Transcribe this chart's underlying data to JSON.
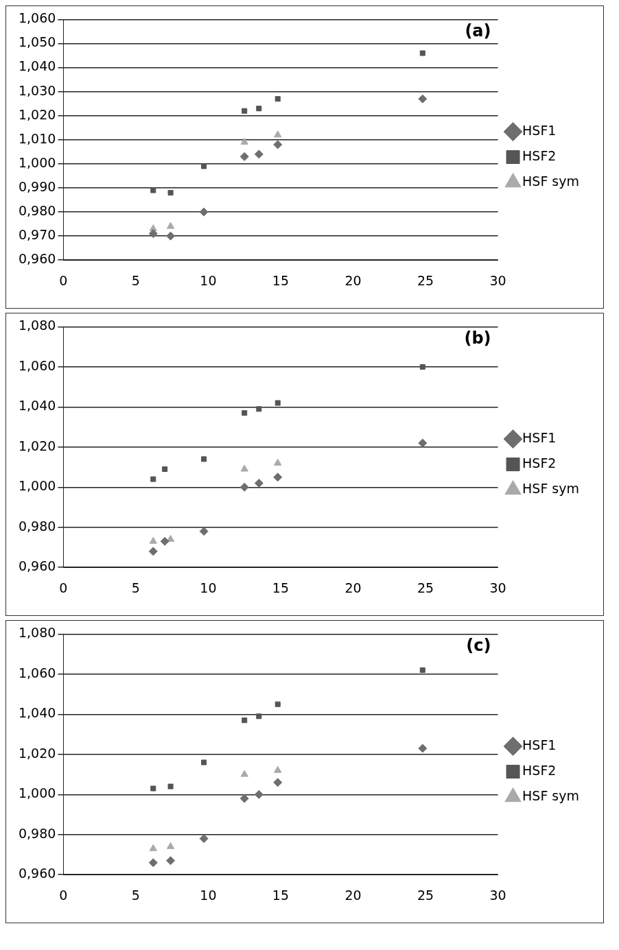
{
  "chart_data": [
    {
      "type": "scatter",
      "annotations": [
        "(a)"
      ],
      "xlim": [
        0,
        30
      ],
      "xticks": [
        0,
        5,
        10,
        15,
        20,
        25,
        30
      ],
      "ylim": [
        0.96,
        1.06
      ],
      "yticks": [
        {
          "value": 0.96,
          "label": "0,960"
        },
        {
          "value": 0.97,
          "label": "0,970"
        },
        {
          "value": 0.98,
          "label": "0,980"
        },
        {
          "value": 0.99,
          "label": "0,990"
        },
        {
          "value": 1.0,
          "label": "1,000"
        },
        {
          "value": 1.01,
          "label": "1,010"
        },
        {
          "value": 1.02,
          "label": "1,020"
        },
        {
          "value": 1.03,
          "label": "1,030"
        },
        {
          "value": 1.04,
          "label": "1,040"
        },
        {
          "value": 1.05,
          "label": "1,050"
        },
        {
          "value": 1.06,
          "label": "1,060"
        }
      ],
      "grid": "y",
      "legend": "right",
      "series": [
        {
          "name": "HSF1",
          "color": "#6e6e6e",
          "marker": "diamond",
          "x": [
            6.2,
            7.4,
            9.7,
            12.5,
            13.5,
            14.8,
            24.8
          ],
          "values": [
            0.971,
            0.97,
            0.98,
            1.003,
            1.004,
            1.008,
            1.027
          ]
        },
        {
          "name": "HSF2",
          "color": "#555555",
          "marker": "square",
          "x": [
            6.2,
            7.4,
            9.7,
            12.5,
            13.5,
            14.8,
            24.8
          ],
          "values": [
            0.989,
            0.988,
            0.999,
            1.022,
            1.023,
            1.027,
            1.046
          ]
        },
        {
          "name": "HSF sym",
          "color": "#aaaaaa",
          "marker": "triangle",
          "x": [
            6.2,
            7.4,
            12.5,
            14.8
          ],
          "values": [
            0.973,
            0.974,
            1.009,
            1.012
          ]
        }
      ]
    },
    {
      "type": "scatter",
      "annotations": [
        "(b)"
      ],
      "xlim": [
        0,
        30
      ],
      "xticks": [
        0,
        5,
        10,
        15,
        20,
        25,
        30
      ],
      "ylim": [
        0.96,
        1.08
      ],
      "yticks": [
        {
          "value": 0.96,
          "label": "0,960"
        },
        {
          "value": 0.98,
          "label": "0,980"
        },
        {
          "value": 1.0,
          "label": "1,000"
        },
        {
          "value": 1.02,
          "label": "1,020"
        },
        {
          "value": 1.04,
          "label": "1,040"
        },
        {
          "value": 1.06,
          "label": "1,060"
        },
        {
          "value": 1.08,
          "label": "1,080"
        }
      ],
      "grid": "y",
      "legend": "right",
      "series": [
        {
          "name": "HSF1",
          "color": "#6e6e6e",
          "marker": "diamond",
          "x": [
            6.2,
            7.0,
            9.7,
            12.5,
            13.5,
            14.8,
            24.8
          ],
          "values": [
            0.968,
            0.973,
            0.978,
            1.0,
            1.002,
            1.005,
            1.022
          ]
        },
        {
          "name": "HSF2",
          "color": "#555555",
          "marker": "square",
          "x": [
            6.2,
            7.0,
            9.7,
            12.5,
            13.5,
            14.8,
            24.8
          ],
          "values": [
            1.004,
            1.009,
            1.014,
            1.037,
            1.039,
            1.042,
            1.06
          ]
        },
        {
          "name": "HSF sym",
          "color": "#aaaaaa",
          "marker": "triangle",
          "x": [
            6.2,
            7.4,
            12.5,
            14.8
          ],
          "values": [
            0.973,
            0.974,
            1.009,
            1.012
          ]
        }
      ]
    },
    {
      "type": "scatter",
      "annotations": [
        "(c)"
      ],
      "xlim": [
        0,
        30
      ],
      "xticks": [
        0,
        5,
        10,
        15,
        20,
        25,
        30
      ],
      "ylim": [
        0.96,
        1.08
      ],
      "yticks": [
        {
          "value": 0.96,
          "label": "0,960"
        },
        {
          "value": 0.98,
          "label": "0,980"
        },
        {
          "value": 1.0,
          "label": "1,000"
        },
        {
          "value": 1.02,
          "label": "1,020"
        },
        {
          "value": 1.04,
          "label": "1,040"
        },
        {
          "value": 1.06,
          "label": "1,060"
        },
        {
          "value": 1.08,
          "label": "1,080"
        }
      ],
      "grid": "y",
      "legend": "right",
      "series": [
        {
          "name": "HSF1",
          "color": "#6e6e6e",
          "marker": "diamond",
          "x": [
            6.2,
            7.4,
            9.7,
            12.5,
            13.5,
            14.8,
            24.8
          ],
          "values": [
            0.966,
            0.967,
            0.978,
            0.998,
            1.0,
            1.006,
            1.023
          ]
        },
        {
          "name": "HSF2",
          "color": "#555555",
          "marker": "square",
          "x": [
            6.2,
            7.4,
            9.7,
            12.5,
            13.5,
            14.8,
            24.8
          ],
          "values": [
            1.003,
            1.004,
            1.016,
            1.037,
            1.039,
            1.045,
            1.062
          ]
        },
        {
          "name": "HSF sym",
          "color": "#aaaaaa",
          "marker": "triangle",
          "x": [
            6.2,
            7.4,
            12.5,
            14.8
          ],
          "values": [
            0.973,
            0.974,
            1.01,
            1.012
          ]
        }
      ]
    }
  ]
}
